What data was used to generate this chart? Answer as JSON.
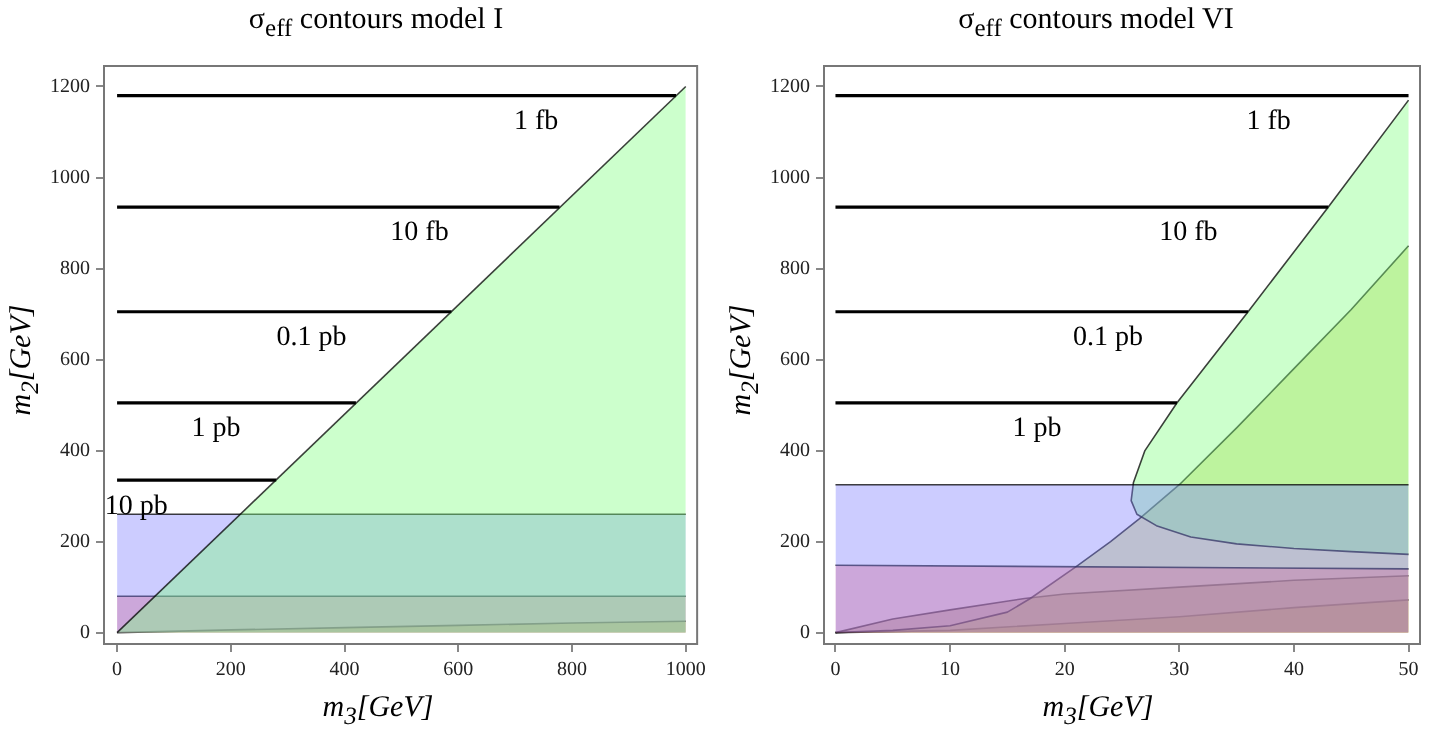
{
  "chart_data": [
    {
      "type": "line",
      "title": "σ$_{eff}$ contours model I",
      "xlabel": "m$_{3}$[GeV]",
      "ylabel": "m$_{2}$[GeV]",
      "xlim": [
        -23,
        1020
      ],
      "ylim": [
        -25,
        1245
      ],
      "xticks": [
        0,
        200,
        400,
        600,
        800,
        1000
      ],
      "yticks": [
        0,
        200,
        400,
        600,
        800,
        1000,
        1200
      ],
      "grid": false,
      "legend": false,
      "series": [
        {
          "type": "area",
          "color": "#80ff80",
          "x": [
            0,
            1000
          ],
          "values": [
            0,
            1200
          ]
        },
        {
          "type": "area",
          "color": "#8080ff",
          "x": [
            0,
            1000
          ],
          "values": [
            260,
            260
          ]
        },
        {
          "type": "area",
          "color": "#ff6666",
          "x": [
            0,
            1000
          ],
          "values": [
            80,
            80
          ]
        },
        {
          "type": "area",
          "color": "#c0c000",
          "x": [
            0,
            200,
            400,
            600,
            800,
            1000
          ],
          "values": [
            0,
            6,
            11,
            16,
            21,
            25
          ]
        },
        {
          "type": "line",
          "name": "1 fb",
          "color": "#000000",
          "x": [
            0,
            983
          ],
          "values": [
            1180,
            1180
          ]
        },
        {
          "type": "line",
          "name": "10 fb",
          "color": "#000000",
          "x": [
            0,
            778
          ],
          "values": [
            935,
            935
          ]
        },
        {
          "type": "line",
          "name": "0.1 pb",
          "color": "#000000",
          "x": [
            0,
            588
          ],
          "values": [
            705,
            705
          ]
        },
        {
          "type": "line",
          "name": "1 pb",
          "color": "#000000",
          "x": [
            0,
            420
          ],
          "values": [
            505,
            505
          ]
        },
        {
          "type": "line",
          "name": "10 pb",
          "color": "#000000",
          "x": [
            0,
            280
          ],
          "values": [
            335,
            335
          ]
        }
      ]
    },
    {
      "type": "line",
      "title": "σ$_{eff}$ contours model VI",
      "xlabel": "m$_{3}$[GeV]",
      "ylabel": "m$_{2}$[GeV]",
      "xlim": [
        -1,
        51
      ],
      "ylim": [
        -25,
        1245
      ],
      "xticks": [
        0,
        10,
        20,
        30,
        40,
        50
      ],
      "yticks": [
        0,
        200,
        400,
        600,
        800,
        1000,
        1200
      ],
      "grid": false,
      "legend": false,
      "series": [
        {
          "type": "area",
          "color": "#8080ff",
          "x": [
            0,
            50
          ],
          "values": [
            325,
            325
          ]
        },
        {
          "type": "area",
          "color": "#ff6666",
          "x": [
            0,
            50
          ],
          "values": [
            148,
            140
          ]
        },
        {
          "type": "area",
          "color": "#80ff80",
          "x": [
            50,
            43,
            36,
            29.8,
            27,
            26,
            25.8,
            26.3,
            28,
            31,
            35,
            40,
            45,
            50
          ],
          "values": [
            1170,
            935,
            705,
            505,
            400,
            330,
            290,
            260,
            235,
            210,
            195,
            185,
            178,
            172
          ]
        },
        {
          "type": "area",
          "color": "#c0d040",
          "x": [
            0,
            5,
            10,
            15,
            17,
            21,
            24,
            26.5,
            30,
            35,
            40,
            45,
            50
          ],
          "values": [
            0,
            5,
            15,
            45,
            75,
            145,
            200,
            250,
            325,
            450,
            580,
            710,
            850
          ]
        },
        {
          "type": "area",
          "color": "#a08040",
          "x": [
            0,
            5,
            10,
            16.5,
            20,
            30,
            40,
            50
          ],
          "values": [
            0,
            30,
            50,
            75,
            85,
            100,
            115,
            125
          ]
        },
        {
          "type": "area",
          "color": "#c0c000",
          "x": [
            0,
            10,
            20,
            30,
            40,
            50
          ],
          "values": [
            0,
            5,
            20,
            35,
            55,
            72
          ]
        },
        {
          "type": "line",
          "name": "1 fb",
          "color": "#000000",
          "x": [
            0,
            50
          ],
          "values": [
            1180,
            1180
          ]
        },
        {
          "type": "line",
          "name": "10 fb",
          "color": "#000000",
          "x": [
            0,
            43
          ],
          "values": [
            935,
            935
          ]
        },
        {
          "type": "line",
          "name": "0.1 pb",
          "color": "#000000",
          "x": [
            0,
            36
          ],
          "values": [
            705,
            705
          ]
        },
        {
          "type": "line",
          "name": "1 pb",
          "color": "#000000",
          "x": [
            0,
            29.8
          ],
          "values": [
            505,
            505
          ]
        }
      ]
    }
  ]
}
